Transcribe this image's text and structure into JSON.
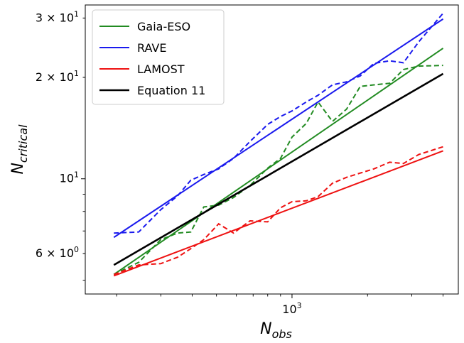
{
  "chart_data": {
    "type": "line",
    "xlabel_main": "N",
    "xlabel_sub": "obs",
    "ylabel_main": "N",
    "ylabel_sub": "critical",
    "xscale": "log",
    "yscale": "log",
    "xlim": [
      150,
      4600
    ],
    "ylim": [
      4.55,
      32.8
    ],
    "grid": false,
    "legend_position": "top-left",
    "xticks": [
      {
        "value": 1000,
        "base": "10",
        "exp": "3"
      }
    ],
    "yticks": [
      {
        "value": 6,
        "coef": "6",
        "base": "10",
        "exp": "0"
      },
      {
        "value": 10,
        "coef": "",
        "base": "10",
        "exp": "1"
      },
      {
        "value": 20,
        "coef": "2",
        "base": "10",
        "exp": "1"
      },
      {
        "value": 30,
        "coef": "3",
        "base": "10",
        "exp": "1"
      }
    ],
    "series": [
      {
        "name": "Gaia-ESO",
        "color": "#228B22",
        "fit": {
          "x": [
            195,
            4000
          ],
          "y": [
            5.2,
            24.4
          ]
        },
        "observed": {
          "x": [
            195,
            245,
            300,
            350,
            395,
            445,
            510,
            585,
            680,
            800,
            900,
            1000,
            1140,
            1270,
            1450,
            1650,
            1870,
            2120,
            2450,
            2780,
            3200,
            4000
          ],
          "y": [
            5.2,
            5.65,
            6.6,
            6.9,
            6.95,
            8.25,
            8.35,
            8.8,
            9.55,
            10.75,
            11.5,
            13.3,
            14.6,
            16.9,
            14.8,
            16.1,
            18.8,
            19.0,
            19.2,
            21.1,
            21.6,
            21.7
          ]
        }
      },
      {
        "name": "RAVE",
        "color": "#1a1aee",
        "fit": {
          "x": [
            195,
            4000
          ],
          "y": [
            6.7,
            29.8
          ]
        },
        "observed": {
          "x": [
            195,
            245,
            300,
            350,
            395,
            445,
            510,
            585,
            680,
            800,
            900,
            1000,
            1140,
            1270,
            1450,
            1650,
            1870,
            2120,
            2450,
            2780,
            3200,
            4000
          ],
          "y": [
            6.9,
            6.95,
            8.1,
            8.9,
            9.9,
            10.3,
            10.7,
            11.5,
            12.9,
            14.5,
            15.3,
            15.9,
            16.9,
            17.7,
            19.0,
            19.4,
            20.2,
            22.0,
            22.4,
            22.1,
            25.5,
            31.0
          ]
        }
      },
      {
        "name": "LAMOST",
        "color": "#ee1111",
        "fit": {
          "x": [
            195,
            4000
          ],
          "y": [
            5.15,
            12.1
          ]
        },
        "observed": {
          "x": [
            195,
            245,
            300,
            350,
            395,
            445,
            510,
            585,
            680,
            800,
            900,
            1000,
            1140,
            1270,
            1450,
            1650,
            1870,
            2120,
            2450,
            2780,
            3200,
            4000
          ],
          "y": [
            5.2,
            5.55,
            5.6,
            5.85,
            6.2,
            6.6,
            7.35,
            6.9,
            7.5,
            7.45,
            8.2,
            8.55,
            8.6,
            8.85,
            9.7,
            10.1,
            10.4,
            10.7,
            11.2,
            11.1,
            11.8,
            12.45
          ]
        }
      },
      {
        "name": "Equation 11",
        "color": "#000000",
        "fit": {
          "x": [
            195,
            4000
          ],
          "y": [
            5.55,
            20.5
          ]
        }
      }
    ]
  }
}
